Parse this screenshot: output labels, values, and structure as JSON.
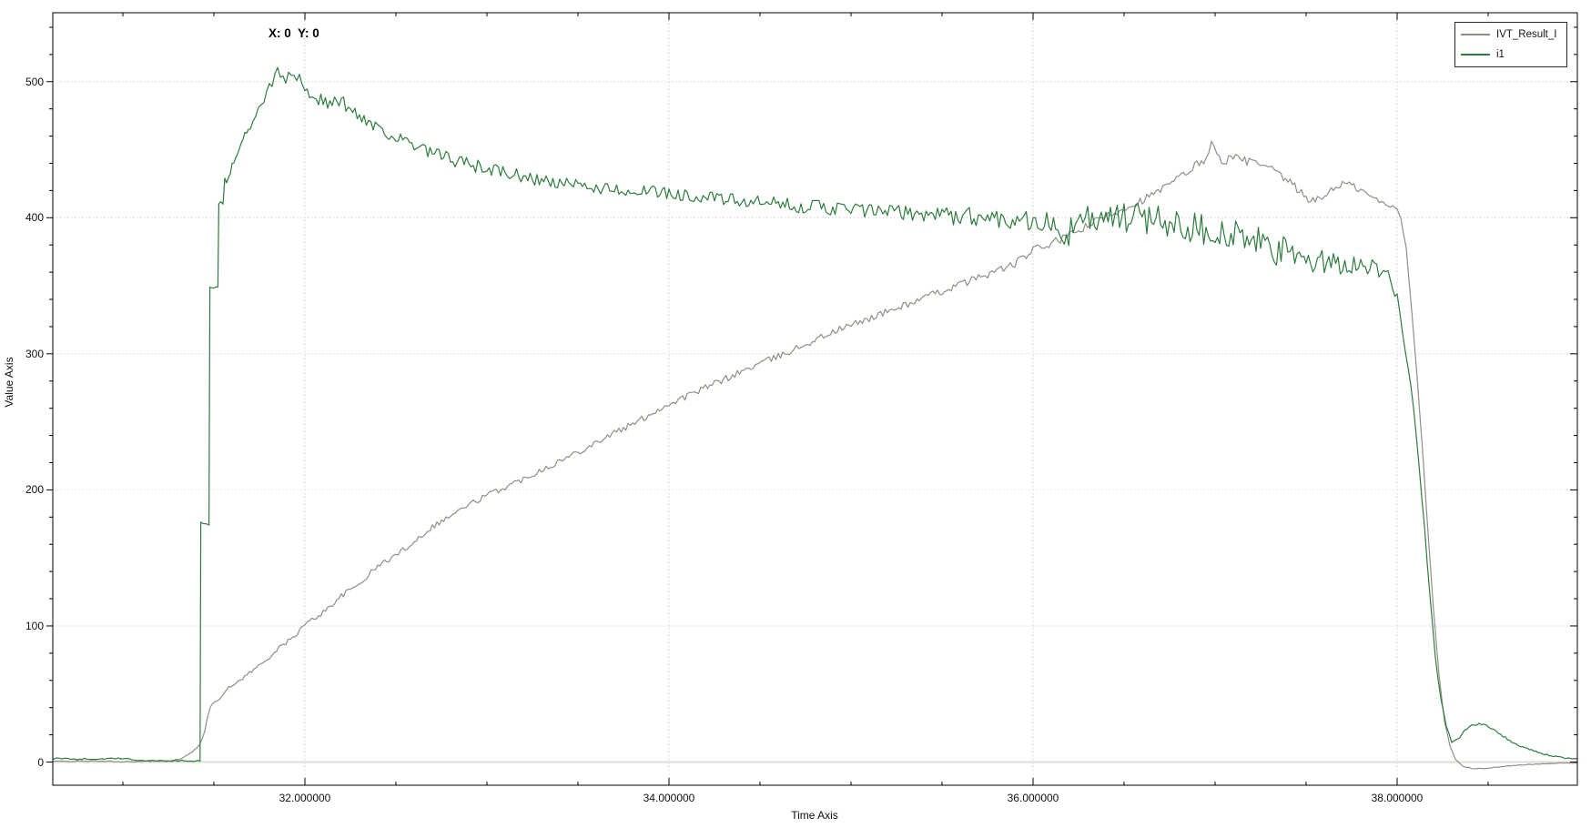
{
  "chart_data": {
    "type": "line",
    "title": "",
    "xlabel": "Time Axis",
    "ylabel": "Value Axis",
    "cursor_readout": "X: 0  Y: 0",
    "x_range": [
      30.615,
      38.99
    ],
    "y_range": [
      -17.05,
      550.65
    ],
    "x_major_ticks": [
      32,
      34,
      36,
      38
    ],
    "x_major_tick_labels": [
      "32.000000",
      "34.000000",
      "36.000000",
      "38.000000"
    ],
    "x_minor_step": 0.5,
    "y_major_ticks": [
      0,
      100,
      200,
      300,
      400,
      500
    ],
    "y_major_tick_labels": [
      "0",
      "100",
      "200",
      "300",
      "400",
      "500"
    ],
    "y_minor_step": 20,
    "grid": "dotted-at-major-ticks",
    "legend_position": "top-right",
    "colors": {
      "background": "#ffffff",
      "plot_border": "#000000",
      "grid": "#c9c9c9",
      "zero_line": "#dcdcd6",
      "text": "#1a1a1a"
    },
    "series": [
      {
        "name": "IVT_Result_I",
        "color": "#8f8f85",
        "seed": 42,
        "noise": [
          [
            30.615,
            0.3
          ],
          [
            31.3,
            0.6
          ],
          [
            31.6,
            1.2
          ],
          [
            32,
            1.8
          ],
          [
            33,
            2.2
          ],
          [
            34,
            2.5
          ],
          [
            35,
            2.5
          ],
          [
            36,
            3
          ],
          [
            36.8,
            3
          ],
          [
            37,
            3.5
          ],
          [
            37.9,
            2.5
          ],
          [
            38.02,
            1
          ],
          [
            38.1,
            0.5
          ],
          [
            38.35,
            0.3
          ],
          [
            38.99,
            0.2
          ]
        ],
        "points": [
          [
            30.615,
            0.5
          ],
          [
            30.8,
            0.7
          ],
          [
            31.0,
            0.3
          ],
          [
            31.1,
            0.4
          ],
          [
            31.2,
            0.6
          ],
          [
            31.28,
            1
          ],
          [
            31.33,
            3
          ],
          [
            31.38,
            7
          ],
          [
            31.42,
            13
          ],
          [
            31.45,
            22
          ],
          [
            31.47,
            36
          ],
          [
            31.49,
            43
          ],
          [
            31.53,
            47
          ],
          [
            31.57,
            53
          ],
          [
            31.62,
            58
          ],
          [
            31.67,
            63
          ],
          [
            31.72,
            68
          ],
          [
            31.77,
            73
          ],
          [
            31.82,
            79
          ],
          [
            31.87,
            85
          ],
          [
            31.92,
            90
          ],
          [
            31.96,
            95
          ],
          [
            32.0,
            101
          ],
          [
            32.1,
            110
          ],
          [
            32.2,
            122
          ],
          [
            32.3,
            131
          ],
          [
            32.4,
            144
          ],
          [
            32.5,
            152
          ],
          [
            32.6,
            162
          ],
          [
            32.7,
            173
          ],
          [
            32.8,
            181
          ],
          [
            32.9,
            189
          ],
          [
            33.0,
            196
          ],
          [
            33.1,
            202
          ],
          [
            33.2,
            208
          ],
          [
            33.3,
            215
          ],
          [
            33.4,
            221
          ],
          [
            33.5,
            228
          ],
          [
            33.6,
            235
          ],
          [
            33.7,
            242
          ],
          [
            33.8,
            248
          ],
          [
            33.9,
            256
          ],
          [
            34.0,
            263
          ],
          [
            34.1,
            269
          ],
          [
            34.2,
            275
          ],
          [
            34.3,
            281
          ],
          [
            34.4,
            287
          ],
          [
            34.5,
            293
          ],
          [
            34.6,
            298
          ],
          [
            34.7,
            304
          ],
          [
            34.8,
            310
          ],
          [
            34.9,
            316
          ],
          [
            35.0,
            321
          ],
          [
            35.1,
            326
          ],
          [
            35.2,
            331
          ],
          [
            35.3,
            336
          ],
          [
            35.4,
            341
          ],
          [
            35.5,
            346
          ],
          [
            35.6,
            351
          ],
          [
            35.7,
            356
          ],
          [
            35.8,
            361
          ],
          [
            35.9,
            366
          ],
          [
            36.0,
            376
          ],
          [
            36.1,
            381
          ],
          [
            36.2,
            387
          ],
          [
            36.3,
            394
          ],
          [
            36.4,
            401
          ],
          [
            36.5,
            407
          ],
          [
            36.6,
            413
          ],
          [
            36.7,
            420
          ],
          [
            36.8,
            429
          ],
          [
            36.9,
            439
          ],
          [
            36.95,
            444
          ],
          [
            36.98,
            455
          ],
          [
            37.01,
            445
          ],
          [
            37.05,
            442
          ],
          [
            37.1,
            444
          ],
          [
            37.2,
            441
          ],
          [
            37.3,
            436
          ],
          [
            37.4,
            427
          ],
          [
            37.45,
            421
          ],
          [
            37.5,
            415
          ],
          [
            37.55,
            412
          ],
          [
            37.6,
            416
          ],
          [
            37.65,
            422
          ],
          [
            37.7,
            425
          ],
          [
            37.75,
            424
          ],
          [
            37.8,
            420
          ],
          [
            37.85,
            416
          ],
          [
            37.9,
            412
          ],
          [
            37.95,
            409
          ],
          [
            38.0,
            407
          ],
          [
            38.02,
            400
          ],
          [
            38.05,
            378
          ],
          [
            38.08,
            332
          ],
          [
            38.11,
            282
          ],
          [
            38.14,
            228
          ],
          [
            38.17,
            168
          ],
          [
            38.2,
            112
          ],
          [
            38.23,
            64
          ],
          [
            38.26,
            30
          ],
          [
            38.29,
            12
          ],
          [
            38.32,
            2
          ],
          [
            38.36,
            -3
          ],
          [
            38.42,
            -5
          ],
          [
            38.5,
            -4.5
          ],
          [
            38.6,
            -3
          ],
          [
            38.7,
            -2
          ],
          [
            38.8,
            -1.2
          ],
          [
            38.9,
            -0.8
          ],
          [
            38.99,
            -0.8
          ]
        ]
      },
      {
        "name": "i1",
        "color": "#2d7c3e",
        "seed": 1337,
        "noise": [
          [
            30.615,
            0.6
          ],
          [
            31.3,
            0.5
          ],
          [
            31.45,
            0.5
          ],
          [
            31.55,
            3
          ],
          [
            31.7,
            4
          ],
          [
            32,
            5
          ],
          [
            32.5,
            5.5
          ],
          [
            33,
            5
          ],
          [
            34,
            4.5
          ],
          [
            35,
            5.5
          ],
          [
            35.5,
            6.5
          ],
          [
            36,
            8
          ],
          [
            36.25,
            11
          ],
          [
            36.5,
            13
          ],
          [
            36.8,
            13
          ],
          [
            37,
            12
          ],
          [
            37.4,
            12
          ],
          [
            37.7,
            10
          ],
          [
            37.95,
            5
          ],
          [
            38.05,
            2
          ],
          [
            38.3,
            1
          ],
          [
            38.5,
            0.8
          ],
          [
            38.99,
            0.5
          ]
        ],
        "points": [
          [
            30.615,
            2.5
          ],
          [
            30.8,
            2.2
          ],
          [
            31.0,
            2.6
          ],
          [
            31.09,
            1.2
          ],
          [
            31.2,
            1
          ],
          [
            31.3,
            1
          ],
          [
            31.4,
            0.8
          ],
          [
            31.424,
            0.8
          ],
          [
            31.428,
            176
          ],
          [
            31.473,
            175
          ],
          [
            31.478,
            348
          ],
          [
            31.522,
            347
          ],
          [
            31.527,
            410
          ],
          [
            31.55,
            413
          ],
          [
            31.56,
            426
          ],
          [
            31.58,
            428
          ],
          [
            31.6,
            441
          ],
          [
            31.62,
            444
          ],
          [
            31.64,
            453
          ],
          [
            31.66,
            456
          ],
          [
            31.68,
            463
          ],
          [
            31.7,
            466
          ],
          [
            31.73,
            473
          ],
          [
            31.76,
            481
          ],
          [
            31.79,
            492
          ],
          [
            31.82,
            500
          ],
          [
            31.85,
            506
          ],
          [
            31.88,
            504
          ],
          [
            31.91,
            503
          ],
          [
            31.94,
            507
          ],
          [
            31.97,
            501
          ],
          [
            32.0,
            494
          ],
          [
            32.05,
            490
          ],
          [
            32.1,
            486
          ],
          [
            32.15,
            483
          ],
          [
            32.2,
            487
          ],
          [
            32.25,
            478
          ],
          [
            32.3,
            475
          ],
          [
            32.4,
            467
          ],
          [
            32.5,
            459
          ],
          [
            32.6,
            452
          ],
          [
            32.7,
            447
          ],
          [
            32.8,
            443
          ],
          [
            32.9,
            439
          ],
          [
            33.0,
            436
          ],
          [
            33.2,
            430
          ],
          [
            33.4,
            425
          ],
          [
            33.6,
            422
          ],
          [
            33.8,
            420
          ],
          [
            34.0,
            418
          ],
          [
            34.2,
            415
          ],
          [
            34.4,
            412
          ],
          [
            34.6,
            410
          ],
          [
            34.8,
            408
          ],
          [
            35.0,
            406
          ],
          [
            35.2,
            404
          ],
          [
            35.4,
            403
          ],
          [
            35.6,
            401
          ],
          [
            35.8,
            400
          ],
          [
            36.0,
            398
          ],
          [
            36.1,
            395
          ],
          [
            36.16,
            385
          ],
          [
            36.22,
            392
          ],
          [
            36.3,
            398
          ],
          [
            36.4,
            400
          ],
          [
            36.5,
            398
          ],
          [
            36.6,
            401
          ],
          [
            36.7,
            398
          ],
          [
            36.8,
            396
          ],
          [
            36.9,
            393
          ],
          [
            37.0,
            390
          ],
          [
            37.1,
            387
          ],
          [
            37.2,
            383
          ],
          [
            37.3,
            378
          ],
          [
            37.4,
            373
          ],
          [
            37.45,
            370
          ],
          [
            37.5,
            372
          ],
          [
            37.55,
            368
          ],
          [
            37.6,
            365
          ],
          [
            37.65,
            367
          ],
          [
            37.7,
            369
          ],
          [
            37.75,
            365
          ],
          [
            37.8,
            367
          ],
          [
            37.85,
            364
          ],
          [
            37.9,
            362
          ],
          [
            37.95,
            359
          ],
          [
            38.0,
            341
          ],
          [
            38.03,
            316
          ],
          [
            38.06,
            291
          ],
          [
            38.09,
            262
          ],
          [
            38.12,
            218
          ],
          [
            38.15,
            172
          ],
          [
            38.18,
            122
          ],
          [
            38.21,
            77
          ],
          [
            38.24,
            46
          ],
          [
            38.27,
            26
          ],
          [
            38.3,
            15
          ],
          [
            38.33,
            16
          ],
          [
            38.37,
            24
          ],
          [
            38.41,
            27
          ],
          [
            38.45,
            28
          ],
          [
            38.49,
            27
          ],
          [
            38.53,
            24
          ],
          [
            38.57,
            20
          ],
          [
            38.63,
            15
          ],
          [
            38.69,
            11
          ],
          [
            38.75,
            8
          ],
          [
            38.81,
            5.5
          ],
          [
            38.87,
            4
          ],
          [
            38.93,
            3
          ],
          [
            38.99,
            2.5
          ]
        ]
      }
    ]
  }
}
